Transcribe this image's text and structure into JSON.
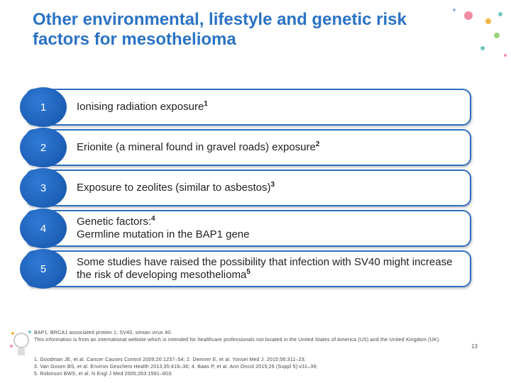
{
  "title": "Other environmental, lifestyle and genetic risk factors for mesothelioma",
  "items": [
    {
      "number": "1",
      "text": "Ionising radiation exposure",
      "sup": "1"
    },
    {
      "number": "2",
      "text": "Erionite (a mineral found in gravel roads) exposure",
      "sup": "2"
    },
    {
      "number": "3",
      "text": "Exposure to zeolites (similar to asbestos)",
      "sup": "3"
    },
    {
      "number": "4",
      "text": "Genetic factors:",
      "sup": "4",
      "text2": "Germline mutation in the BAP1 gene"
    },
    {
      "number": "5",
      "text": "Some studies have raised the possibility that infection with SV40 might increase the risk of developing mesothelioma",
      "sup": "5"
    }
  ],
  "footnotes": {
    "abbreviations": "BAP1, BRCA1 associated protein 1; SV40, simian virus 40.",
    "disclaimer": "This information is from an international website which is intended for healthcare professionals not located in the United States of America (US) and the United Kingdom (UK).",
    "references": [
      "1. Goodman JE, et al. Cancer Causes Control 2009;20:1237–54; 2. Demirer E, et al. Yonsei Med J. 2015;56:311–23;",
      "3. Van Gosen BS, et al. Environ Geochem Health 2013;35:419–30; 4. Baas P, et al. Ann Oncol 2015;26 (Suppl 5):v31–39;",
      "5. Robinson BWS, et al. N Engl J Med 2005;353:1591–603."
    ]
  },
  "page_number": "13"
}
